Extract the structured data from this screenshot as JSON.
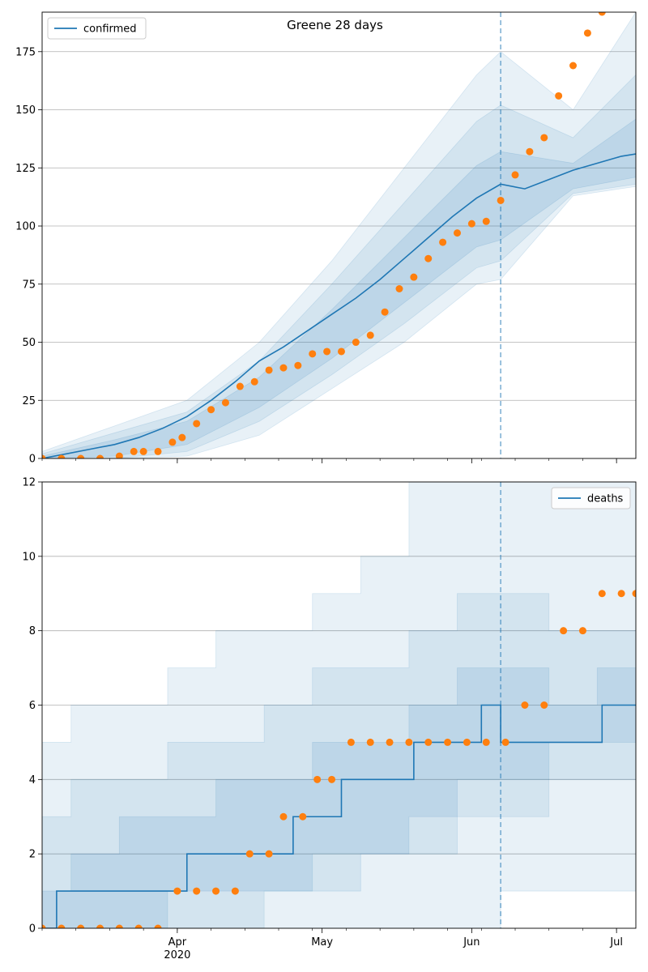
{
  "chart_data": [
    {
      "type": "line",
      "title": "Greene 28 days",
      "legend": {
        "label": "confirmed",
        "placement": "top-left"
      },
      "ylim": [
        0,
        192
      ],
      "yticks": [
        0,
        25,
        50,
        75,
        100,
        125,
        150,
        175
      ],
      "grid": "y",
      "colors": {
        "line": "#1f77b4",
        "points": "#ff7f0e",
        "band": "#1f77b4"
      },
      "x_start": "2020-03-04",
      "x_end": "2020-07-05",
      "vline_date": "2020-06-07",
      "bands": [
        {
          "level": "outer",
          "x": [
            "2020-03-04",
            "2020-03-19",
            "2020-04-03",
            "2020-04-18",
            "2020-05-03",
            "2020-05-18",
            "2020-06-02",
            "2020-06-07",
            "2020-06-22",
            "2020-07-05"
          ],
          "lower": [
            0,
            0,
            1,
            10,
            30,
            50,
            75,
            77,
            113,
            117
          ],
          "upper": [
            3,
            14,
            25,
            50,
            85,
            125,
            165,
            175,
            150,
            192
          ]
        },
        {
          "level": "mid",
          "x": [
            "2020-03-04",
            "2020-03-19",
            "2020-04-03",
            "2020-04-18",
            "2020-05-03",
            "2020-05-18",
            "2020-06-02",
            "2020-06-07",
            "2020-06-22",
            "2020-07-05"
          ],
          "lower": [
            0,
            0,
            3,
            16,
            36,
            58,
            82,
            85,
            114,
            118
          ],
          "upper": [
            2,
            11,
            20,
            42,
            75,
            110,
            145,
            152,
            138,
            165
          ]
        },
        {
          "level": "inner",
          "x": [
            "2020-03-04",
            "2020-03-19",
            "2020-04-03",
            "2020-04-18",
            "2020-05-03",
            "2020-05-18",
            "2020-06-02",
            "2020-06-07",
            "2020-06-22",
            "2020-07-05"
          ],
          "lower": [
            0,
            1,
            6,
            22,
            43,
            67,
            91,
            94,
            116,
            121
          ],
          "upper": [
            1,
            8,
            16,
            35,
            64,
            95,
            126,
            132,
            127,
            146
          ]
        }
      ],
      "series": [
        {
          "name": "confirmed",
          "style": "line",
          "x": [
            "2020-03-04",
            "2020-03-09",
            "2020-03-14",
            "2020-03-19",
            "2020-03-24",
            "2020-03-29",
            "2020-04-03",
            "2020-04-08",
            "2020-04-13",
            "2020-04-18",
            "2020-04-23",
            "2020-04-28",
            "2020-05-03",
            "2020-05-08",
            "2020-05-13",
            "2020-05-18",
            "2020-05-23",
            "2020-05-28",
            "2020-06-02",
            "2020-06-07",
            "2020-06-12",
            "2020-06-17",
            "2020-06-22",
            "2020-06-27",
            "2020-07-02",
            "2020-07-05"
          ],
          "y": [
            0,
            2,
            4,
            6,
            9,
            13,
            18,
            25,
            33,
            42,
            48,
            55,
            62,
            69,
            77,
            86,
            95,
            104,
            112,
            118,
            116,
            120,
            124,
            127,
            130,
            131
          ]
        },
        {
          "name": "",
          "style": "points",
          "x": [
            "2020-03-04",
            "2020-03-08",
            "2020-03-12",
            "2020-03-16",
            "2020-03-20",
            "2020-03-23",
            "2020-03-25",
            "2020-03-28",
            "2020-03-31",
            "2020-04-02",
            "2020-04-05",
            "2020-04-08",
            "2020-04-11",
            "2020-04-14",
            "2020-04-17",
            "2020-04-20",
            "2020-04-23",
            "2020-04-26",
            "2020-04-29",
            "2020-05-02",
            "2020-05-05",
            "2020-05-08",
            "2020-05-11",
            "2020-05-14",
            "2020-05-17",
            "2020-05-20",
            "2020-05-23",
            "2020-05-26",
            "2020-05-29",
            "2020-06-01",
            "2020-06-04",
            "2020-06-07",
            "2020-06-10",
            "2020-06-13",
            "2020-06-16",
            "2020-06-19",
            "2020-06-22",
            "2020-06-25",
            "2020-06-28"
          ],
          "y": [
            0,
            0,
            0,
            0,
            1,
            3,
            3,
            3,
            7,
            9,
            15,
            21,
            24,
            31,
            33,
            38,
            39,
            40,
            45,
            46,
            46,
            50,
            53,
            63,
            73,
            78,
            86,
            93,
            97,
            101,
            102,
            111,
            122,
            132,
            138,
            156,
            169,
            183,
            192
          ]
        }
      ]
    },
    {
      "type": "line",
      "title": "",
      "legend": {
        "label": "deaths",
        "placement": "top-right"
      },
      "ylim": [
        0,
        12
      ],
      "yticks": [
        0,
        2,
        4,
        6,
        8,
        10,
        12
      ],
      "grid": "y",
      "colors": {
        "line": "#1f77b4",
        "points": "#ff7f0e",
        "band": "#1f77b4"
      },
      "x_start": "2020-03-04",
      "x_end": "2020-07-05",
      "vline_date": "2020-06-07",
      "xticks_major": [
        {
          "date": "2020-04-01",
          "label": "Apr",
          "sublabel": "2020"
        },
        {
          "date": "2020-05-01",
          "label": "May",
          "sublabel": ""
        },
        {
          "date": "2020-06-01",
          "label": "Jun",
          "sublabel": ""
        },
        {
          "date": "2020-07-01",
          "label": "Jul",
          "sublabel": ""
        }
      ],
      "bands": [
        {
          "level": "outer",
          "x": [
            "2020-03-04",
            "2020-03-10",
            "2020-03-20",
            "2020-03-30",
            "2020-04-09",
            "2020-04-19",
            "2020-04-29",
            "2020-05-09",
            "2020-05-19",
            "2020-05-29",
            "2020-06-07",
            "2020-06-17",
            "2020-06-27",
            "2020-07-05"
          ],
          "lower": [
            0,
            0,
            0,
            0,
            0,
            0,
            0,
            0,
            0,
            0,
            1,
            1,
            1,
            1
          ],
          "upper": [
            5,
            6,
            6,
            7,
            8,
            8,
            9,
            10,
            12,
            12,
            12,
            12,
            12,
            12
          ]
        },
        {
          "level": "mid",
          "x": [
            "2020-03-04",
            "2020-03-10",
            "2020-03-20",
            "2020-03-30",
            "2020-04-09",
            "2020-04-19",
            "2020-04-29",
            "2020-05-09",
            "2020-05-19",
            "2020-05-29",
            "2020-06-07",
            "2020-06-17",
            "2020-06-27",
            "2020-07-05"
          ],
          "lower": [
            0,
            0,
            0,
            0,
            0,
            1,
            1,
            2,
            2,
            3,
            3,
            4,
            4,
            4
          ],
          "upper": [
            3,
            4,
            4,
            5,
            5,
            6,
            7,
            7,
            8,
            9,
            9,
            8,
            8,
            8
          ]
        },
        {
          "level": "inner",
          "x": [
            "2020-03-04",
            "2020-03-10",
            "2020-03-20",
            "2020-03-30",
            "2020-04-09",
            "2020-04-19",
            "2020-04-29",
            "2020-05-09",
            "2020-05-19",
            "2020-05-29",
            "2020-06-07",
            "2020-06-17",
            "2020-06-27",
            "2020-07-05"
          ],
          "lower": [
            0,
            0,
            0,
            1,
            1,
            1,
            2,
            2,
            3,
            4,
            4,
            5,
            5,
            5
          ],
          "upper": [
            1,
            2,
            3,
            3,
            4,
            4,
            5,
            5,
            6,
            7,
            7,
            6,
            7,
            7
          ]
        }
      ],
      "series": [
        {
          "name": "deaths",
          "style": "step",
          "x": [
            "2020-03-04",
            "2020-03-07",
            "2020-04-03",
            "2020-04-25",
            "2020-05-05",
            "2020-05-20",
            "2020-06-03",
            "2020-06-07",
            "2020-06-28",
            "2020-07-05"
          ],
          "y": [
            0,
            1,
            2,
            3,
            4,
            5,
            6,
            5,
            6,
            6
          ]
        },
        {
          "name": "",
          "style": "points",
          "x": [
            "2020-03-04",
            "2020-03-08",
            "2020-03-12",
            "2020-03-16",
            "2020-03-20",
            "2020-03-24",
            "2020-03-28",
            "2020-04-01",
            "2020-04-05",
            "2020-04-09",
            "2020-04-13",
            "2020-04-16",
            "2020-04-20",
            "2020-04-23",
            "2020-04-27",
            "2020-04-30",
            "2020-05-03",
            "2020-05-07",
            "2020-05-11",
            "2020-05-15",
            "2020-05-19",
            "2020-05-23",
            "2020-05-27",
            "2020-05-31",
            "2020-06-04",
            "2020-06-08",
            "2020-06-12",
            "2020-06-16",
            "2020-06-20",
            "2020-06-24",
            "2020-06-28",
            "2020-07-02",
            "2020-07-05"
          ],
          "y": [
            0,
            0,
            0,
            0,
            0,
            0,
            0,
            1,
            1,
            1,
            1,
            2,
            2,
            3,
            3,
            4,
            4,
            5,
            5,
            5,
            5,
            5,
            5,
            5,
            5,
            5,
            6,
            6,
            8,
            8,
            9,
            9,
            9
          ]
        }
      ]
    }
  ]
}
